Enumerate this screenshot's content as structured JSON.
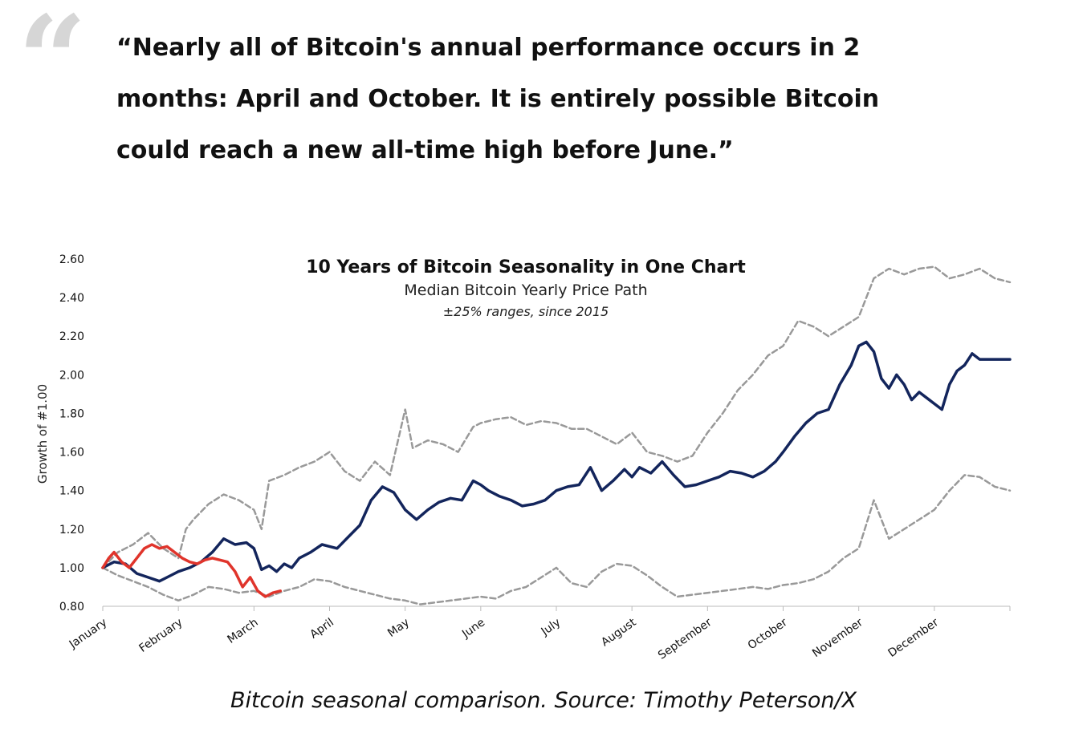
{
  "quote": {
    "mark": "“",
    "lines": [
      "“Nearly all of Bitcoin's annual performance occurs in 2",
      "months: April and October.  It is entirely possible Bitcoin",
      "could reach a new all-time high before June.”"
    ]
  },
  "caption": "Bitcoin seasonal comparison. Source: Timothy Peterson/X",
  "chart_data": {
    "type": "line",
    "title": "10 Years of Bitcoin Seasonality in One Chart",
    "subtitle": "Median Bitcoin Yearly Price Path",
    "note": "±25% ranges, since 2015",
    "ylabel": "Growth of #1.00",
    "ylim": [
      0.8,
      2.6
    ],
    "yticks": [
      "0.80",
      "1.00",
      "1.20",
      "1.40",
      "1.60",
      "1.80",
      "2.00",
      "2.20",
      "2.40",
      "2.60"
    ],
    "xlim": [
      0,
      12
    ],
    "xticks": [
      "January",
      "February",
      "March",
      "April",
      "May",
      "June",
      "July",
      "August",
      "September",
      "October",
      "November",
      "December"
    ],
    "series": [
      {
        "style": "median",
        "color": "#13255c",
        "x": [
          0,
          0.15,
          0.3,
          0.45,
          0.6,
          0.75,
          0.9,
          1.0,
          1.15,
          1.3,
          1.45,
          1.6,
          1.75,
          1.9,
          2.0,
          2.1,
          2.2,
          2.3,
          2.4,
          2.5,
          2.6,
          2.75,
          2.9,
          3.0,
          3.1,
          3.25,
          3.4,
          3.55,
          3.7,
          3.85,
          4.0,
          4.15,
          4.3,
          4.45,
          4.6,
          4.75,
          4.9,
          5.0,
          5.1,
          5.25,
          5.4,
          5.55,
          5.7,
          5.85,
          6.0,
          6.15,
          6.3,
          6.45,
          6.6,
          6.75,
          6.9,
          7.0,
          7.1,
          7.25,
          7.4,
          7.55,
          7.7,
          7.85,
          8.0,
          8.15,
          8.3,
          8.45,
          8.6,
          8.75,
          8.9,
          9.0,
          9.15,
          9.3,
          9.45,
          9.6,
          9.75,
          9.9,
          10.0,
          10.1,
          10.2,
          10.3,
          10.4,
          10.5,
          10.6,
          10.7,
          10.8,
          10.9,
          11.0,
          11.1,
          11.2,
          11.3,
          11.4,
          11.5,
          11.6,
          11.7,
          11.8,
          11.9,
          12.0
        ],
        "y": [
          1.0,
          1.03,
          1.02,
          0.97,
          0.95,
          0.93,
          0.96,
          0.98,
          1.0,
          1.03,
          1.08,
          1.15,
          1.12,
          1.13,
          1.1,
          0.99,
          1.01,
          0.98,
          1.02,
          1.0,
          1.05,
          1.08,
          1.12,
          1.11,
          1.1,
          1.16,
          1.22,
          1.35,
          1.42,
          1.39,
          1.3,
          1.25,
          1.3,
          1.34,
          1.36,
          1.35,
          1.45,
          1.43,
          1.4,
          1.37,
          1.35,
          1.32,
          1.33,
          1.35,
          1.4,
          1.42,
          1.43,
          1.52,
          1.4,
          1.45,
          1.51,
          1.47,
          1.52,
          1.49,
          1.55,
          1.48,
          1.42,
          1.43,
          1.45,
          1.47,
          1.5,
          1.49,
          1.47,
          1.5,
          1.55,
          1.6,
          1.68,
          1.75,
          1.8,
          1.82,
          1.95,
          2.05,
          2.15,
          2.17,
          2.12,
          1.98,
          1.93,
          2.0,
          1.95,
          1.87,
          1.91,
          1.88,
          1.85,
          1.82,
          1.95,
          2.02,
          2.05,
          2.11,
          2.08,
          2.08,
          2.08,
          2.08,
          2.08
        ]
      },
      {
        "style": "upper-range",
        "color": "#999999",
        "x": [
          0,
          0.2,
          0.4,
          0.5,
          0.6,
          0.8,
          1.0,
          1.1,
          1.2,
          1.4,
          1.6,
          1.8,
          2.0,
          2.1,
          2.2,
          2.4,
          2.6,
          2.8,
          3.0,
          3.2,
          3.4,
          3.6,
          3.8,
          4.0,
          4.1,
          4.3,
          4.5,
          4.7,
          4.9,
          5.0,
          5.2,
          5.4,
          5.6,
          5.8,
          6.0,
          6.2,
          6.4,
          6.6,
          6.8,
          7.0,
          7.2,
          7.4,
          7.6,
          7.8,
          8.0,
          8.2,
          8.4,
          8.6,
          8.8,
          9.0,
          9.2,
          9.4,
          9.6,
          9.8,
          10.0,
          10.2,
          10.4,
          10.6,
          10.8,
          11.0,
          11.2,
          11.4,
          11.6,
          11.8,
          12.0
        ],
        "y": [
          1.0,
          1.08,
          1.12,
          1.15,
          1.18,
          1.1,
          1.05,
          1.2,
          1.25,
          1.33,
          1.38,
          1.35,
          1.3,
          1.2,
          1.45,
          1.48,
          1.52,
          1.55,
          1.6,
          1.5,
          1.45,
          1.55,
          1.48,
          1.82,
          1.62,
          1.66,
          1.64,
          1.6,
          1.73,
          1.75,
          1.77,
          1.78,
          1.74,
          1.76,
          1.75,
          1.72,
          1.72,
          1.68,
          1.64,
          1.7,
          1.6,
          1.58,
          1.55,
          1.58,
          1.7,
          1.8,
          1.92,
          2.0,
          2.1,
          2.15,
          2.28,
          2.25,
          2.2,
          2.25,
          2.3,
          2.5,
          2.55,
          2.52,
          2.55,
          2.56,
          2.5,
          2.52,
          2.55,
          2.5,
          2.48
        ]
      },
      {
        "style": "lower-range",
        "color": "#999999",
        "x": [
          0,
          0.2,
          0.4,
          0.6,
          0.8,
          1.0,
          1.2,
          1.4,
          1.6,
          1.8,
          2.0,
          2.2,
          2.4,
          2.6,
          2.8,
          3.0,
          3.2,
          3.4,
          3.6,
          3.8,
          4.0,
          4.2,
          4.4,
          4.6,
          4.8,
          5.0,
          5.2,
          5.4,
          5.6,
          5.8,
          6.0,
          6.2,
          6.4,
          6.6,
          6.8,
          7.0,
          7.2,
          7.4,
          7.6,
          7.8,
          8.0,
          8.2,
          8.4,
          8.6,
          8.8,
          9.0,
          9.2,
          9.4,
          9.6,
          9.8,
          10.0,
          10.2,
          10.4,
          10.6,
          10.8,
          11.0,
          11.2,
          11.4,
          11.6,
          11.8,
          12.0
        ],
        "y": [
          1.0,
          0.96,
          0.93,
          0.9,
          0.86,
          0.83,
          0.86,
          0.9,
          0.89,
          0.87,
          0.88,
          0.85,
          0.88,
          0.9,
          0.94,
          0.93,
          0.9,
          0.88,
          0.86,
          0.84,
          0.83,
          0.81,
          0.82,
          0.83,
          0.84,
          0.85,
          0.84,
          0.88,
          0.9,
          0.95,
          1.0,
          0.92,
          0.9,
          0.98,
          1.02,
          1.01,
          0.96,
          0.9,
          0.85,
          0.86,
          0.87,
          0.88,
          0.89,
          0.9,
          0.89,
          0.91,
          0.92,
          0.94,
          0.98,
          1.05,
          1.1,
          1.35,
          1.15,
          1.2,
          1.25,
          1.3,
          1.4,
          1.48,
          1.47,
          1.42,
          1.4
        ]
      },
      {
        "style": "current-year",
        "color": "#e0342b",
        "x": [
          0,
          0.08,
          0.15,
          0.25,
          0.35,
          0.45,
          0.55,
          0.65,
          0.75,
          0.85,
          0.95,
          1.05,
          1.15,
          1.25,
          1.35,
          1.45,
          1.55,
          1.65,
          1.75,
          1.85,
          1.95,
          2.05,
          2.15,
          2.25,
          2.35
        ],
        "y": [
          1.0,
          1.05,
          1.08,
          1.03,
          1.0,
          1.05,
          1.1,
          1.12,
          1.1,
          1.11,
          1.08,
          1.05,
          1.03,
          1.02,
          1.04,
          1.05,
          1.04,
          1.03,
          0.98,
          0.9,
          0.95,
          0.88,
          0.85,
          0.87,
          0.88
        ]
      }
    ]
  }
}
